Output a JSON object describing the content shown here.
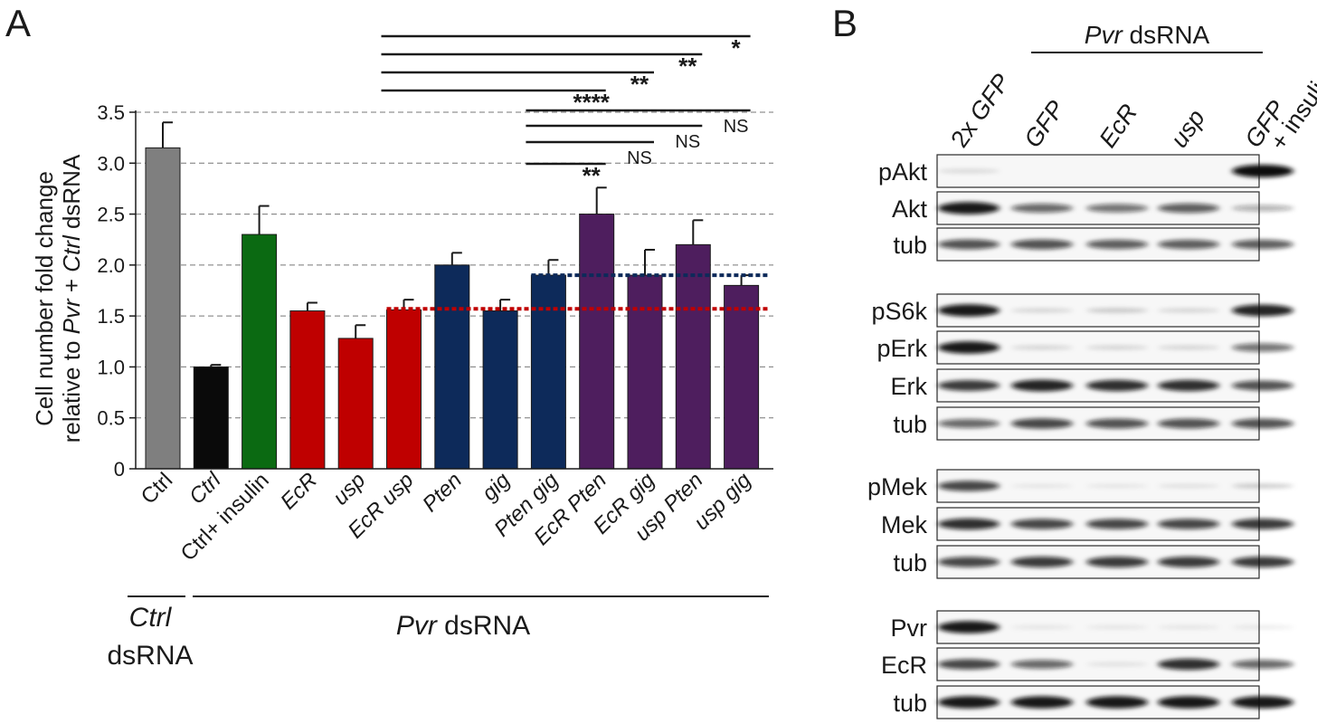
{
  "panel_a": {
    "letter": "A",
    "ylabel_line1": "Cell number fold change",
    "ylabel_line2_pre": "relative to ",
    "ylabel_line2_pvr": "Pvr",
    "ylabel_line2_mid": " + ",
    "ylabel_line2_ctrl": "Ctrl",
    "ylabel_line2_post": " dsRNA",
    "group_ctrl_italic": "Ctrl",
    "group_ctrl_plain": "dsRNA",
    "group_pvr_italic": "Pvr",
    "group_pvr_plain": " dsRNA",
    "colors": {
      "gray": "#7f7f7f",
      "black": "#0a0a0a",
      "green": "#0b6a12",
      "red": "#bf0000",
      "navy": "#0d2a5a",
      "purple": "#4e1e5e",
      "ref_red": "#c00000",
      "ref_navy": "#0d2a5a"
    }
  },
  "chart_data": {
    "type": "bar",
    "ylim": [
      0,
      3.5
    ],
    "yticks": [
      "0",
      "0.5",
      "1.0",
      "1.5",
      "2.0",
      "2.5",
      "3.0",
      "3.5"
    ],
    "grid": "horizontal dashed",
    "categories": [
      {
        "label": "Ctrl",
        "italic": false,
        "value": 3.15,
        "error": 0.25,
        "color": "gray"
      },
      {
        "label": "Ctrl",
        "italic": true,
        "value": 1.0,
        "error": 0.02,
        "color": "black"
      },
      {
        "label": "Ctrl+ insulin",
        "italic": false,
        "value": 2.3,
        "error": 0.28,
        "color": "green"
      },
      {
        "label": "EcR",
        "italic": true,
        "value": 1.55,
        "error": 0.08,
        "color": "red"
      },
      {
        "label": "usp",
        "italic": true,
        "value": 1.28,
        "error": 0.13,
        "color": "red"
      },
      {
        "label": "EcR usp",
        "italic": true,
        "value": 1.56,
        "error": 0.1,
        "color": "red"
      },
      {
        "label": "Pten",
        "italic": true,
        "value": 2.0,
        "error": 0.12,
        "color": "navy"
      },
      {
        "label": "gig",
        "italic": true,
        "value": 1.55,
        "error": 0.11,
        "color": "navy"
      },
      {
        "label": "Pten gig",
        "italic": true,
        "value": 1.9,
        "error": 0.15,
        "color": "navy"
      },
      {
        "label": "EcR Pten",
        "italic": true,
        "value": 2.5,
        "error": 0.26,
        "color": "purple"
      },
      {
        "label": "EcR gig",
        "italic": true,
        "value": 1.9,
        "error": 0.25,
        "color": "purple"
      },
      {
        "label": "usp Pten",
        "italic": true,
        "value": 2.2,
        "error": 0.24,
        "color": "purple"
      },
      {
        "label": "usp gig",
        "italic": true,
        "value": 1.8,
        "error": 0.1,
        "color": "purple"
      }
    ],
    "reference_lines": [
      {
        "value": 1.57,
        "from": 5,
        "to": 12,
        "color": "ref_red"
      },
      {
        "value": 1.9,
        "from": 8,
        "to": 12,
        "color": "ref_navy"
      }
    ],
    "significance": [
      {
        "from": 5,
        "to": 12,
        "label": "*"
      },
      {
        "from": 5,
        "to": 11,
        "label": "**"
      },
      {
        "from": 5,
        "to": 10,
        "label": "**"
      },
      {
        "from": 5,
        "to": 9,
        "label": "****"
      },
      {
        "from": 8,
        "to": 12,
        "label": "NS"
      },
      {
        "from": 8,
        "to": 11,
        "label": "NS"
      },
      {
        "from": 8,
        "to": 10,
        "label": "NS"
      },
      {
        "from": 8,
        "to": 9,
        "label": "**"
      }
    ]
  },
  "panel_b": {
    "letter": "B",
    "header_pvr": "Pvr",
    "header_dsrna": " dsRNA",
    "lanes": [
      {
        "label": "2x GFP",
        "italic_part": "GFP",
        "prefix": "2x ",
        "suffix": ""
      },
      {
        "label": "GFP",
        "italic_part": "GFP",
        "prefix": "",
        "suffix": ""
      },
      {
        "label": "EcR",
        "italic_part": "EcR",
        "prefix": "",
        "suffix": ""
      },
      {
        "label": "usp",
        "italic_part": "usp",
        "prefix": "",
        "suffix": ""
      },
      {
        "label": "GFP + insulin",
        "italic_part": "GFP",
        "prefix": "",
        "suffix": "+ insulin"
      }
    ],
    "blots": [
      {
        "label": "pAkt",
        "intensity": [
          0.08,
          0,
          0,
          0,
          1.0
        ]
      },
      {
        "label": "Akt",
        "intensity": [
          0.95,
          0.6,
          0.55,
          0.65,
          0.3
        ]
      },
      {
        "label": "tub",
        "intensity": [
          0.7,
          0.7,
          0.65,
          0.65,
          0.65
        ]
      },
      {
        "label": "pS6k",
        "intensity": [
          0.95,
          0.1,
          0.15,
          0.1,
          0.9
        ]
      },
      {
        "label": "pErk",
        "intensity": [
          0.95,
          0.1,
          0.1,
          0.1,
          0.55
        ]
      },
      {
        "label": "Erk",
        "intensity": [
          0.8,
          0.9,
          0.85,
          0.85,
          0.7
        ]
      },
      {
        "label": "tub",
        "intensity": [
          0.6,
          0.75,
          0.7,
          0.7,
          0.7
        ]
      },
      {
        "label": "pMek",
        "intensity": [
          0.75,
          0.03,
          0.03,
          0.05,
          0.15
        ]
      },
      {
        "label": "Mek",
        "intensity": [
          0.85,
          0.75,
          0.75,
          0.75,
          0.8
        ]
      },
      {
        "label": "tub",
        "intensity": [
          0.75,
          0.8,
          0.8,
          0.8,
          0.8
        ]
      },
      {
        "label": "Pvr",
        "intensity": [
          0.95,
          0.03,
          0.03,
          0.03,
          0.03
        ]
      },
      {
        "label": "EcR",
        "intensity": [
          0.75,
          0.6,
          0.05,
          0.85,
          0.6
        ]
      },
      {
        "label": "tub",
        "intensity": [
          0.95,
          0.95,
          0.95,
          0.95,
          0.95
        ]
      }
    ]
  }
}
